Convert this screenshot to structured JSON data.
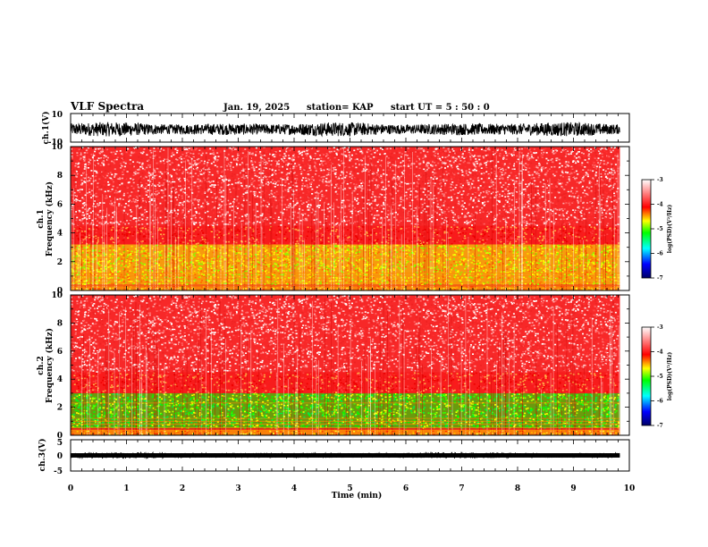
{
  "header": {
    "title": "VLF Spectra",
    "date": "Jan. 19, 2025",
    "station": "station= KAP",
    "start": "start  UT =  5 : 50 : 0"
  },
  "colors": {
    "spectrogram_base": "#ee2020",
    "colormap": [
      "#000066",
      "#0000ff",
      "#00ffff",
      "#00ff00",
      "#ffff00",
      "#ff0000",
      "#ffffff"
    ]
  },
  "chart_data": [
    {
      "type": "line",
      "name": "ch1-waveform",
      "ylabel": "ch.1(V)",
      "ylim": [
        -10,
        10
      ],
      "yticks": [
        "10",
        "-10"
      ],
      "xlim": [
        0,
        10
      ],
      "signal_range": [
        -6,
        4
      ]
    },
    {
      "type": "heatmap",
      "name": "ch1-spectrogram",
      "ylabel": "ch.1\nFrequency (kHz)",
      "ylabel_line1": "ch.1",
      "ylabel_line2": "Frequency (kHz)",
      "ylim": [
        0,
        10
      ],
      "yticks": [
        "0",
        "2",
        "4",
        "6",
        "8",
        "10"
      ],
      "xlim": [
        0,
        9.83
      ],
      "bands_khz": [
        {
          "from": 0,
          "to": 0.3,
          "level": "yellow-red"
        },
        {
          "from": 0.4,
          "to": 3.2,
          "level": "yellow-green"
        },
        {
          "from": 3.2,
          "to": 4.5,
          "level": "red"
        },
        {
          "from": 4.5,
          "to": 10,
          "level": "red-white"
        }
      ],
      "colorbar": {
        "label": "log(PSD)(V²/Hz)",
        "ticks": [
          "-3",
          "-4",
          "-5",
          "-6",
          "-7"
        ],
        "range": [
          -7,
          -3
        ]
      }
    },
    {
      "type": "heatmap",
      "name": "ch2-spectrogram",
      "ylabel": "ch.2\nFrequency (kHz)",
      "ylabel_line1": "ch.2",
      "ylabel_line2": "Frequency (kHz)",
      "ylim": [
        0,
        10
      ],
      "yticks": [
        "0",
        "2",
        "4",
        "6",
        "8",
        "10"
      ],
      "xlim": [
        0,
        9.83
      ],
      "bands_khz": [
        {
          "from": 0,
          "to": 0.4,
          "level": "yellow-red"
        },
        {
          "from": 0.5,
          "to": 3.0,
          "level": "green"
        },
        {
          "from": 3.0,
          "to": 4.5,
          "level": "red"
        },
        {
          "from": 4.5,
          "to": 10,
          "level": "red-white"
        }
      ],
      "colorbar": {
        "label": "log(PSD)(V²/Hz)",
        "ticks": [
          "-3",
          "-4",
          "-5",
          "-6",
          "-7"
        ],
        "range": [
          -7,
          -3
        ]
      }
    },
    {
      "type": "line",
      "name": "ch3-waveform",
      "ylabel": "ch.3(V)",
      "ylim": [
        -5,
        5
      ],
      "yticks": [
        "5",
        "0",
        "-5"
      ],
      "xlim": [
        0,
        10
      ],
      "signal_range": [
        -0.7,
        0.7
      ]
    }
  ],
  "xaxis": {
    "label": "Time (min)",
    "ticks": [
      "0",
      "1",
      "2",
      "3",
      "4",
      "5",
      "6",
      "7",
      "8",
      "9",
      "10"
    ],
    "range": [
      0,
      10
    ]
  }
}
